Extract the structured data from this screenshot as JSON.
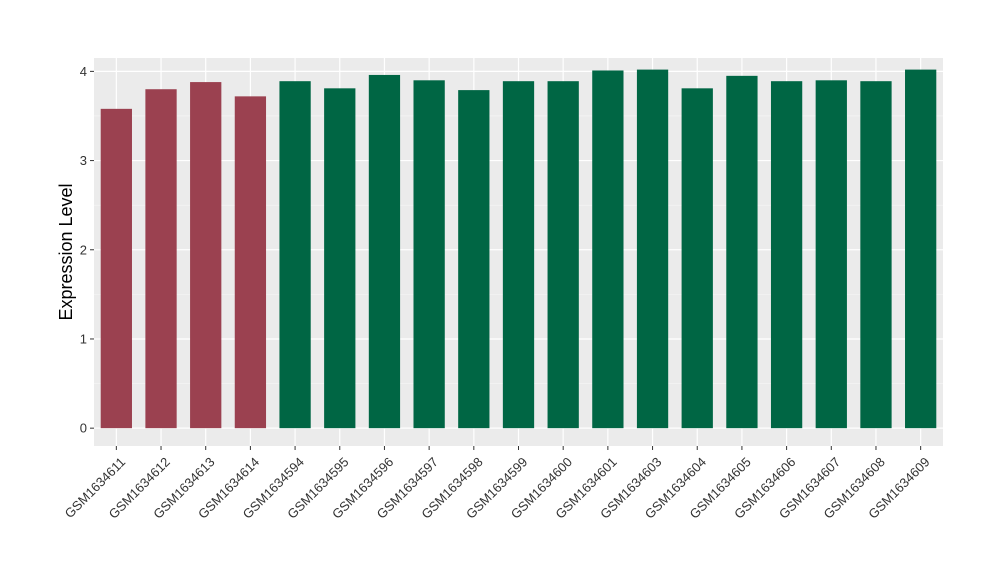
{
  "chart_data": {
    "type": "bar",
    "title": "",
    "xlabel": "",
    "ylabel": "Expression Level",
    "ylim": [
      -0.2,
      4.15
    ],
    "yticks": [
      0,
      1,
      2,
      3,
      4
    ],
    "grid": true,
    "panel_background": "#EBEBEB",
    "categories": [
      "GSM1634611",
      "GSM1634612",
      "GSM1634613",
      "GSM1634614",
      "GSM1634594",
      "GSM1634595",
      "GSM1634596",
      "GSM1634597",
      "GSM1634598",
      "GSM1634599",
      "GSM1634600",
      "GSM1634601",
      "GSM1634603",
      "GSM1634604",
      "GSM1634605",
      "GSM1634606",
      "GSM1634607",
      "GSM1634608",
      "GSM1634609"
    ],
    "values": [
      3.58,
      3.8,
      3.88,
      3.72,
      3.89,
      3.81,
      3.96,
      3.9,
      3.79,
      3.89,
      3.89,
      4.01,
      4.02,
      3.81,
      3.95,
      3.89,
      3.9,
      3.89,
      4.02
    ],
    "colors": [
      "#9B4150",
      "#9B4150",
      "#9B4150",
      "#9B4150",
      "#006644",
      "#006644",
      "#006644",
      "#006644",
      "#006644",
      "#006644",
      "#006644",
      "#006644",
      "#006644",
      "#006644",
      "#006644",
      "#006644",
      "#006644",
      "#006644",
      "#006644"
    ]
  }
}
